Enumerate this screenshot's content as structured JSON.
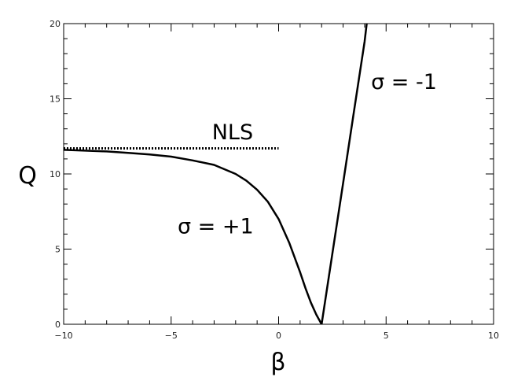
{
  "chart_data": {
    "type": "line",
    "title": "",
    "xlabel": "β",
    "ylabel": "Q",
    "xlim": [
      -10,
      10
    ],
    "ylim": [
      0,
      20
    ],
    "x_ticks": [
      -10,
      -5,
      0,
      5,
      10
    ],
    "x_tick_labels": [
      "−10",
      "−5",
      "0",
      "5",
      "10"
    ],
    "y_ticks": [
      0,
      5,
      10,
      15,
      20
    ],
    "y_tick_labels": [
      "0",
      "5",
      "10",
      "15",
      "20"
    ],
    "grid": false,
    "series": [
      {
        "style": "solid",
        "color": "#000000",
        "x": [
          -10,
          -9,
          -8,
          -7,
          -6,
          -5,
          -4,
          -3,
          -2,
          -1.5,
          -1,
          -0.5,
          0,
          0.5,
          1,
          1.25,
          1.5,
          1.75,
          2
        ],
        "y": [
          11.6,
          11.55,
          11.5,
          11.4,
          11.3,
          11.15,
          10.9,
          10.6,
          10.0,
          9.55,
          8.95,
          8.15,
          7.0,
          5.4,
          3.45,
          2.4,
          1.45,
          0.65,
          0
        ]
      },
      {
        "style": "solid",
        "color": "#000000",
        "x": [
          2,
          2.5,
          3,
          3.5,
          4,
          4.1
        ],
        "y": [
          0,
          4.7,
          9.4,
          14.1,
          18.8,
          20
        ]
      },
      {
        "name": "NLS",
        "style": "dotted",
        "color": "#000000",
        "x": [
          -10,
          0
        ],
        "y": [
          11.7,
          11.7
        ]
      }
    ],
    "annotations": [
      {
        "text": "NLS",
        "x": -3.1,
        "y": 12.3
      },
      {
        "text": "σ = +1",
        "x": -4.7,
        "y": 6.05
      },
      {
        "text": "σ = -1",
        "x": 4.3,
        "y": 15.65
      }
    ]
  }
}
